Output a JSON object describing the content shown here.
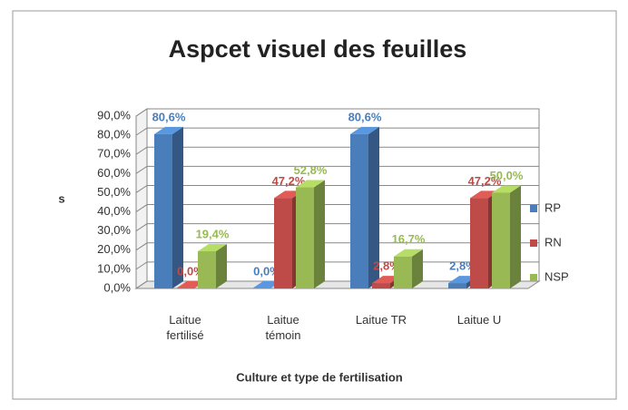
{
  "chart_data": {
    "type": "bar3d",
    "title": "Aspcet visuel des feuilles",
    "y_label": "s",
    "x_label": "Culture et type de fertilisation",
    "categories": [
      "Laitue fertilisé",
      "Laitue témoin",
      "Laitue TR",
      "Laitue U"
    ],
    "series": [
      {
        "name": "RP",
        "color": "#4a7ebb",
        "values": [
          80.6,
          0,
          80.6,
          2.8
        ],
        "value_labels": [
          "80,6%",
          "0,0%",
          "80,6%",
          "2,8%"
        ]
      },
      {
        "name": "RN",
        "color": "#be4b48",
        "values": [
          0,
          47.2,
          2.8,
          47.2
        ],
        "value_labels": [
          "0,0%",
          "47,2%",
          "2,8%",
          "47,2%"
        ]
      },
      {
        "name": "NSP",
        "color": "#98b954",
        "values": [
          19.4,
          52.8,
          16.7,
          50.0
        ],
        "value_labels": [
          "19,4%",
          "52,8%",
          "16,7%",
          "50,0%"
        ]
      }
    ],
    "ylim": [
      0,
      90
    ],
    "yticks": [
      {
        "value": 0,
        "label": "0,0%"
      },
      {
        "value": 10,
        "label": "10,0%"
      },
      {
        "value": 20,
        "label": "20,0%"
      },
      {
        "value": 30,
        "label": "30,0%"
      },
      {
        "value": 40,
        "label": "40,0%"
      },
      {
        "value": 50,
        "label": "50,0%"
      },
      {
        "value": 60,
        "label": "60,0%"
      },
      {
        "value": 70,
        "label": "70,0%"
      },
      {
        "value": 80,
        "label": "80,0%"
      },
      {
        "value": 90,
        "label": "90,0%"
      }
    ],
    "grid": true,
    "legend": "right"
  }
}
